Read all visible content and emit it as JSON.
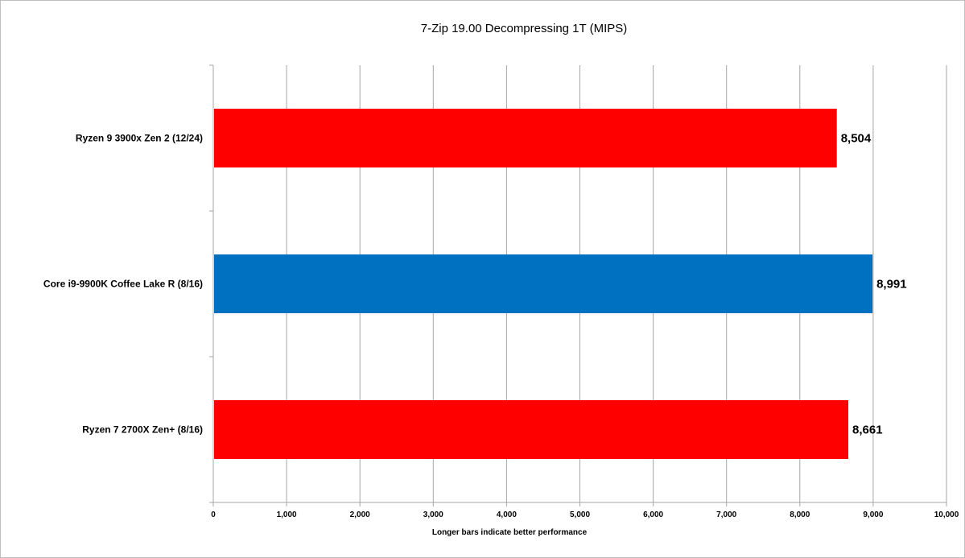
{
  "chart_data": {
    "type": "bar",
    "orientation": "horizontal",
    "title": "7-Zip 19.00 Decompressing 1T (MIPS)",
    "xlabel": "Longer  bars indicate better performance",
    "ylabel": "",
    "xlim": [
      0,
      10000
    ],
    "x_ticks": [
      "0",
      "1,000",
      "2,000",
      "3,000",
      "4,000",
      "5,000",
      "6,000",
      "7,000",
      "8,000",
      "9,000",
      "10,000"
    ],
    "grid": true,
    "legend": "none",
    "categories": [
      "Ryzen 9 3900x Zen 2 (12/24)",
      "Core i9-9900K Coffee Lake R (8/16)",
      "Ryzen 7 2700X Zen+ (8/16)"
    ],
    "values": [
      8504,
      8991,
      8661
    ],
    "data_labels": [
      "8,504",
      "8,991",
      "8,661"
    ],
    "colors": [
      "#ff0000",
      "#0070c0",
      "#ff0000"
    ]
  }
}
